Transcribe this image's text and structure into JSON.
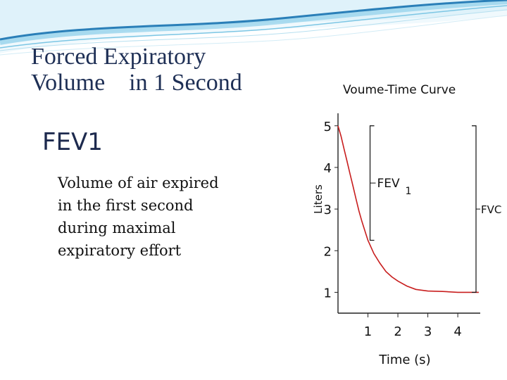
{
  "slide": {
    "title_lines": [
      "Forced Expiratory",
      "Volume    in 1 Second"
    ],
    "heading": "FEV1",
    "description_lines": [
      "Volume of air expired",
      "in the first second",
      "during maximal",
      "expiratory effort"
    ]
  },
  "colors": {
    "title": "#1e2f55",
    "wave_dark": "#2a7fb8",
    "wave_light": "#8fd0ea",
    "curve": "#c81e1e"
  },
  "chart_data": {
    "type": "line",
    "title": "Voume-Time Curve",
    "xlabel": "Time (s)",
    "ylabel": "Liters",
    "x_ticks": [
      "1",
      "2",
      "3",
      "4"
    ],
    "y_ticks": [
      "1",
      "2",
      "3",
      "4",
      "5"
    ],
    "xlim": [
      0,
      4.75
    ],
    "ylim": [
      0.5,
      5.3
    ],
    "grid": false,
    "legend": "none",
    "series": [
      {
        "x": [
          0,
          0.1,
          0.2,
          0.3,
          0.4,
          0.5,
          0.6,
          0.7,
          0.8,
          0.9,
          1.0,
          1.2,
          1.4,
          1.6,
          1.8,
          2.0,
          2.3,
          2.6,
          3.0,
          3.5,
          4.0,
          4.7
        ],
        "y": [
          5.0,
          4.75,
          4.45,
          4.15,
          3.85,
          3.55,
          3.25,
          2.95,
          2.7,
          2.47,
          2.25,
          1.93,
          1.7,
          1.5,
          1.37,
          1.27,
          1.15,
          1.07,
          1.03,
          1.02,
          1.0,
          1.0
        ]
      }
    ],
    "brackets": [
      {
        "label": "FEV",
        "subscript": "1",
        "from": 5.0,
        "to": 2.25
      },
      {
        "label": "FVC",
        "from": 5.0,
        "to": 1.0
      }
    ]
  }
}
